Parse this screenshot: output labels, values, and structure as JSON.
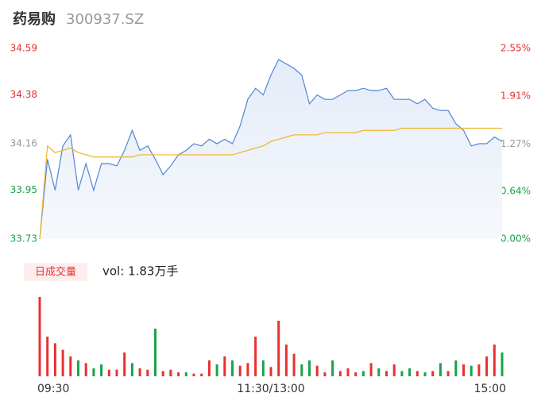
{
  "chart_data": [
    {
      "type": "line",
      "title": "药易购",
      "subtitle": "300937.SZ",
      "xlim": [
        0,
        240
      ],
      "x": [
        0,
        4,
        8,
        12,
        16,
        20,
        24,
        28,
        32,
        36,
        40,
        44,
        48,
        52,
        56,
        60,
        64,
        68,
        72,
        76,
        80,
        84,
        88,
        92,
        96,
        100,
        104,
        108,
        112,
        116,
        120,
        124,
        128,
        132,
        136,
        140,
        144,
        148,
        152,
        156,
        160,
        164,
        168,
        172,
        176,
        180,
        184,
        188,
        192,
        196,
        200,
        204,
        208,
        212,
        216,
        220,
        224,
        228,
        232,
        236,
        240
      ],
      "series": [
        {
          "color": "#4f86d8",
          "area": true,
          "values": [
            33.73,
            34.09,
            33.95,
            34.15,
            34.2,
            33.95,
            34.07,
            33.95,
            34.07,
            34.07,
            34.06,
            34.13,
            34.22,
            34.13,
            34.15,
            34.09,
            34.02,
            34.06,
            34.11,
            34.13,
            34.16,
            34.15,
            34.18,
            34.16,
            34.18,
            34.16,
            34.24,
            34.36,
            34.41,
            34.38,
            34.47,
            34.54,
            34.52,
            34.5,
            34.47,
            34.34,
            34.38,
            34.36,
            34.36,
            34.38,
            34.4,
            34.4,
            34.41,
            34.4,
            34.4,
            34.41,
            34.36,
            34.36,
            34.36,
            34.34,
            34.36,
            34.32,
            34.31,
            34.31,
            34.25,
            34.22,
            34.15,
            34.16,
            34.16,
            34.19,
            34.17
          ]
        },
        {
          "color": "#f0b429",
          "values": [
            33.73,
            34.15,
            34.12,
            34.13,
            34.14,
            34.12,
            34.11,
            34.1,
            34.1,
            34.1,
            34.1,
            34.1,
            34.1,
            34.11,
            34.11,
            34.11,
            34.11,
            34.11,
            34.11,
            34.11,
            34.11,
            34.11,
            34.11,
            34.11,
            34.11,
            34.11,
            34.12,
            34.13,
            34.14,
            34.15,
            34.17,
            34.18,
            34.19,
            34.2,
            34.2,
            34.2,
            34.2,
            34.21,
            34.21,
            34.21,
            34.21,
            34.21,
            34.22,
            34.22,
            34.22,
            34.22,
            34.22,
            34.23,
            34.23,
            34.23,
            34.23,
            34.23,
            34.23,
            34.23,
            34.23,
            34.23,
            34.23,
            34.23,
            34.23,
            34.23,
            34.23
          ]
        }
      ],
      "ylim": [
        33.73,
        34.59
      ],
      "yticks": [
        33.73,
        33.95,
        34.16,
        34.38,
        34.59
      ],
      "ytick_colors": [
        "#1aa34a",
        "#1aa34a",
        "#999999",
        "#e8312f",
        "#e8312f"
      ],
      "y2lim": [
        0,
        2.55
      ],
      "y2ticks": [
        {
          "value": 0,
          "label": "0.00%"
        },
        {
          "value": 0.64,
          "label": "0.64%"
        },
        {
          "value": 1.27,
          "label": "1.27%"
        },
        {
          "value": 1.91,
          "label": "1.91%"
        },
        {
          "value": 2.55,
          "label": "2.55%"
        }
      ],
      "grid": false
    },
    {
      "type": "bar",
      "title": "日成交量",
      "annotation": "vol: 1.83万手",
      "xlim": [
        0,
        240
      ],
      "xticks": [
        {
          "value": 0,
          "label": "09:30"
        },
        {
          "value": 120,
          "label": "11:30/13:00"
        },
        {
          "value": 240,
          "label": "15:00"
        }
      ],
      "x": [
        0,
        4,
        8,
        12,
        16,
        20,
        24,
        28,
        32,
        36,
        40,
        44,
        48,
        52,
        56,
        60,
        64,
        68,
        72,
        76,
        80,
        84,
        88,
        92,
        96,
        100,
        104,
        108,
        112,
        116,
        120,
        124,
        128,
        132,
        136,
        140,
        144,
        148,
        152,
        156,
        160,
        164,
        168,
        172,
        176,
        180,
        184,
        188,
        192,
        196,
        200,
        204,
        208,
        212,
        216,
        220,
        224,
        228,
        232,
        236,
        240
      ],
      "values": [
        600,
        300,
        250,
        200,
        150,
        120,
        100,
        60,
        90,
        50,
        50,
        180,
        100,
        60,
        50,
        360,
        40,
        50,
        30,
        30,
        20,
        20,
        120,
        90,
        150,
        120,
        80,
        100,
        300,
        120,
        70,
        420,
        240,
        170,
        90,
        120,
        80,
        30,
        120,
        40,
        60,
        30,
        40,
        100,
        60,
        40,
        90,
        40,
        60,
        40,
        30,
        40,
        100,
        40,
        120,
        90,
        80,
        90,
        150,
        240,
        180
      ],
      "colors": [
        "#e8312f",
        "#e8312f",
        "#e8312f",
        "#e8312f",
        "#e8312f",
        "#1aa34a",
        "#e8312f",
        "#1aa34a",
        "#1aa34a",
        "#e8312f",
        "#e8312f",
        "#e8312f",
        "#1aa34a",
        "#e8312f",
        "#e8312f",
        "#1aa34a",
        "#e8312f",
        "#e8312f",
        "#e8312f",
        "#1aa34a",
        "#e8312f",
        "#e8312f",
        "#e8312f",
        "#1aa34a",
        "#e8312f",
        "#1aa34a",
        "#e8312f",
        "#e8312f",
        "#e8312f",
        "#1aa34a",
        "#e8312f",
        "#e8312f",
        "#e8312f",
        "#e8312f",
        "#1aa34a",
        "#1aa34a",
        "#e8312f",
        "#e8312f",
        "#1aa34a",
        "#e8312f",
        "#e8312f",
        "#e8312f",
        "#1aa34a",
        "#e8312f",
        "#1aa34a",
        "#e8312f",
        "#e8312f",
        "#1aa34a",
        "#1aa34a",
        "#e8312f",
        "#1aa34a",
        "#e8312f",
        "#1aa34a",
        "#e8312f",
        "#1aa34a",
        "#e8312f",
        "#1aa34a",
        "#e8312f",
        "#e8312f",
        "#e8312f",
        "#1aa34a"
      ],
      "ylim": [
        0,
        600
      ]
    }
  ]
}
